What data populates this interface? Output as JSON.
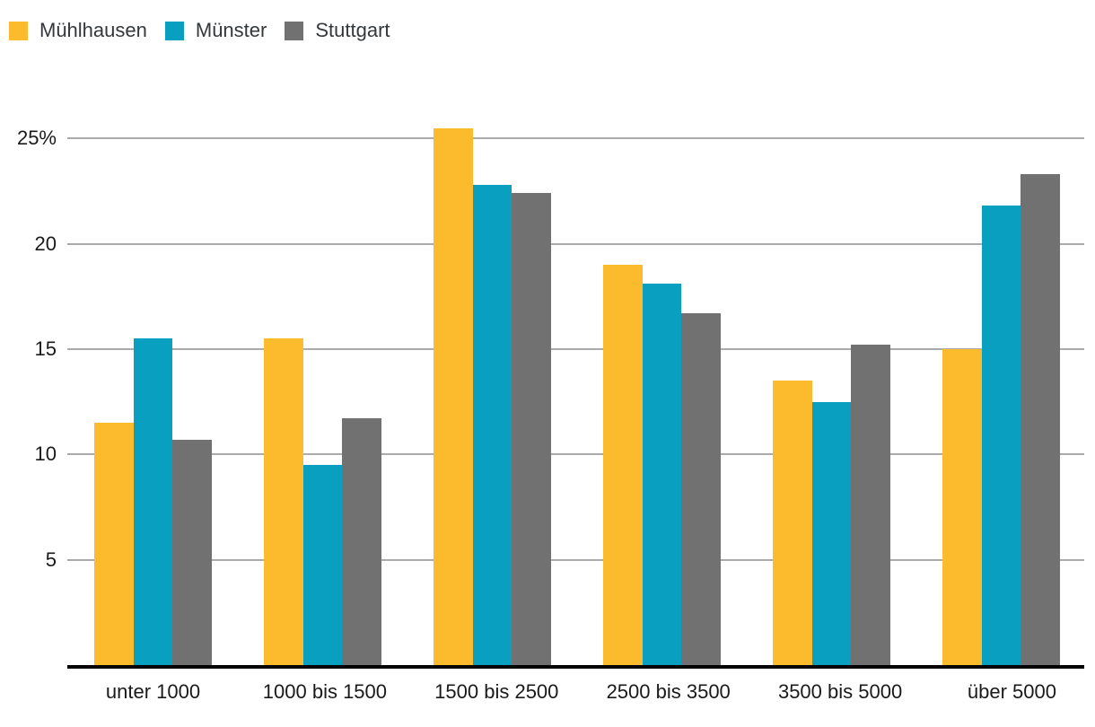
{
  "legend": {
    "position": "top-left",
    "items": [
      {
        "label": "Mühlhausen",
        "color": "#FCBB2D"
      },
      {
        "label": "Münster",
        "color": "#089FC0"
      },
      {
        "label": "Stuttgart",
        "color": "#717171"
      }
    ]
  },
  "chart_data": {
    "type": "bar",
    "title": "",
    "xlabel": "",
    "ylabel": "",
    "unit": "%",
    "grid": "horizontal",
    "legend_position": "top-left",
    "categories": [
      "unter 1000",
      "1000 bis 1500",
      "1500 bis 2500",
      "2500 bis 3500",
      "3500 bis 5000",
      "über 5000"
    ],
    "series": [
      {
        "name": "Mühlhausen",
        "color": "#FCBB2D",
        "values": [
          11.5,
          15.5,
          25.5,
          19.0,
          13.5,
          15.0
        ]
      },
      {
        "name": "Münster",
        "color": "#089FC0",
        "values": [
          15.5,
          9.5,
          22.8,
          18.1,
          12.5,
          21.8
        ]
      },
      {
        "name": "Stuttgart",
        "color": "#717171",
        "values": [
          10.7,
          11.7,
          22.4,
          16.7,
          15.2,
          23.3
        ]
      }
    ],
    "y_axis": {
      "ticks": [
        5,
        10,
        15,
        20,
        25
      ],
      "tick_labels": [
        "5",
        "10",
        "15",
        "20",
        "25%"
      ],
      "ylim": [
        0,
        27.5
      ]
    },
    "colors": {
      "gridline": "#ababab",
      "axis_line": "#000000",
      "tick_text": "#1a1a1a",
      "legend_text": "#34383b",
      "background": "#ffffff"
    }
  }
}
